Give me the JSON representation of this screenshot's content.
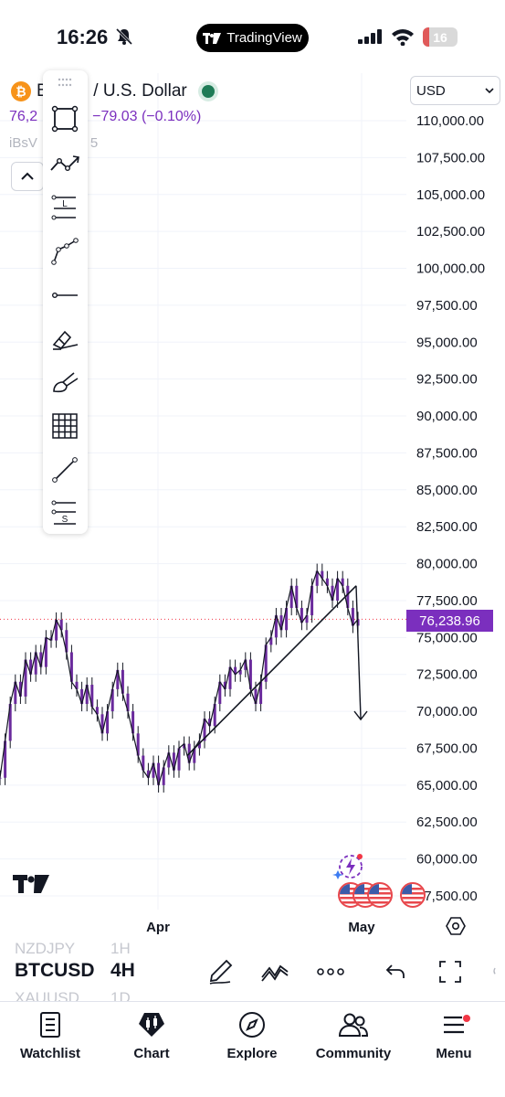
{
  "status_bar": {
    "time": "16:26",
    "app_pill": "TradingView",
    "battery": "16"
  },
  "header": {
    "symbol_title": "Bitcoin / U.S. Dollar",
    "price_visible": "76,2",
    "change": "−79.03 (−0.10%)",
    "indicator": "iBsV",
    "indicator_tail": "5",
    "currency": "USD"
  },
  "drawing_tools": [
    {
      "name": "rectangle-tool-icon"
    },
    {
      "name": "trend-line-tool-icon"
    },
    {
      "name": "long-position-tool-icon",
      "badge": "L"
    },
    {
      "name": "path-tool-icon"
    },
    {
      "name": "horizontal-ray-tool-icon"
    },
    {
      "name": "eraser-tool-icon"
    },
    {
      "name": "brush-tool-icon"
    },
    {
      "name": "grid-tool-icon"
    },
    {
      "name": "line-segment-tool-icon"
    },
    {
      "name": "short-position-tool-icon",
      "badge": "S"
    }
  ],
  "chart_data": {
    "type": "line",
    "symbol": "BTCUSD",
    "interval": "4H",
    "current_price": "76,238.96",
    "y_tick_labels": [
      "110,000.00",
      "107,500.00",
      "105,000.00",
      "102,500.00",
      "100,000.00",
      "97,500.00",
      "95,000.00",
      "92,500.00",
      "90,000.00",
      "87,500.00",
      "85,000.00",
      "82,500.00",
      "80,000.00",
      "77,500.00",
      "75,000.00",
      "72,500.00",
      "70,000.00",
      "67,500.00",
      "65,000.00",
      "62,500.00",
      "60,000.00",
      "57,500.00"
    ],
    "ylim": [
      57500,
      110000
    ],
    "x_tick_labels": [
      "Apr",
      "May"
    ],
    "series": [
      {
        "values": [
          65500,
          68000,
          70500,
          72000,
          71000,
          73500,
          72500,
          74000,
          73000,
          75000,
          74800,
          76200,
          75500,
          74000,
          72000,
          71500,
          70500,
          71800,
          70300,
          69800,
          68500,
          70000,
          71500,
          72800,
          71200,
          70000,
          68500,
          67000,
          66000,
          65500,
          66500,
          65000,
          66200,
          67200,
          66000,
          67500,
          67800,
          66500,
          67500,
          68000,
          69500,
          69000,
          70500,
          72000,
          71500,
          73000,
          72500,
          72800,
          73500,
          71500,
          70500,
          72000,
          74500,
          75000,
          76500,
          75500,
          77000,
          78500,
          77000,
          76000,
          76500,
          78500,
          79500,
          79000,
          78500,
          77500,
          79000,
          78500,
          77000,
          75800,
          76238.96
        ]
      }
    ],
    "annotations": {
      "trend_line": [
        [
          67000,
          "start"
        ],
        [
          78500,
          "end"
        ]
      ],
      "projection_arrow_to": 70000
    }
  },
  "toolbar": {
    "ghost_symbols": [
      "NZDJPY",
      "XAUUSD"
    ],
    "ghost_intervals": [
      "1H",
      "1D"
    ],
    "symbol": "BTCUSD",
    "interval": "4H"
  },
  "tabs": [
    {
      "label": "Watchlist"
    },
    {
      "label": "Chart"
    },
    {
      "label": "Explore"
    },
    {
      "label": "Community"
    },
    {
      "label": "Menu"
    }
  ],
  "colors": {
    "series": "#6a2a9c",
    "accent": "#7b2fbe",
    "price_line": "#f23645"
  }
}
